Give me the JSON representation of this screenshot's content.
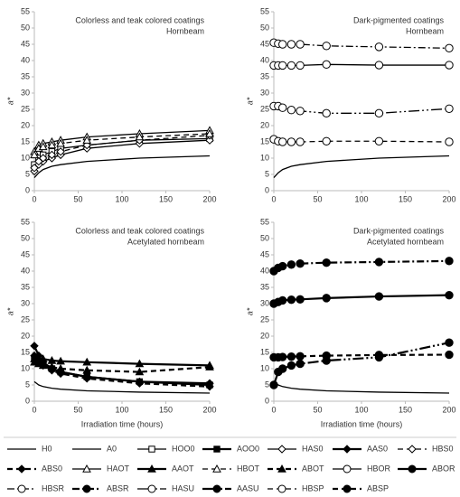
{
  "chart_data": [
    {
      "type": "line",
      "annotations": [
        "Colorless and teak colored coatings",
        "Hornbeam"
      ],
      "y_label": "a*",
      "x": [
        0,
        5,
        10,
        20,
        30,
        60,
        120,
        200
      ],
      "xlim": [
        0,
        200
      ],
      "xticks": [
        0,
        50,
        100,
        150,
        200
      ],
      "ylim": [
        0,
        55
      ],
      "yticks": [
        0,
        5,
        10,
        15,
        20,
        25,
        30,
        35,
        40,
        45,
        50,
        55
      ],
      "series": [
        {
          "name": "H0",
          "color": "#000000",
          "line": "solid",
          "marker": "none",
          "filled": false,
          "values": [
            4,
            5.5,
            6.5,
            7.5,
            8,
            9,
            10,
            10.7
          ]
        },
        {
          "name": "HOO0",
          "color": "#000000",
          "line": "solid",
          "marker": "square",
          "filled": false,
          "values": [
            8,
            10,
            11,
            12,
            13,
            14,
            15.5,
            16
          ]
        },
        {
          "name": "HAS0",
          "color": "#000000",
          "line": "solid",
          "marker": "diamond",
          "filled": false,
          "values": [
            6,
            8,
            9,
            10,
            11,
            13,
            14.5,
            15.5
          ]
        },
        {
          "name": "HBS0",
          "color": "#000000",
          "line": "dashed",
          "marker": "diamond",
          "filled": false,
          "values": [
            7,
            9,
            10,
            11,
            12,
            14,
            15.5,
            17
          ]
        },
        {
          "name": "HAOT",
          "color": "#000000",
          "line": "solid",
          "marker": "triangle",
          "filled": false,
          "values": [
            12,
            14,
            14.5,
            15,
            15.5,
            16.5,
            17.5,
            18.5
          ]
        },
        {
          "name": "HBOT",
          "color": "#000000",
          "line": "dashed",
          "marker": "triangle",
          "filled": false,
          "values": [
            11,
            13,
            13.5,
            14,
            14.5,
            15.5,
            16.5,
            17.5
          ]
        }
      ]
    },
    {
      "type": "line",
      "annotations": [
        "Dark-pigmented coatings",
        "Hornbeam"
      ],
      "y_label": "a*",
      "x": [
        0,
        5,
        10,
        20,
        30,
        60,
        120,
        200
      ],
      "xlim": [
        0,
        200
      ],
      "xticks": [
        0,
        50,
        100,
        150,
        200
      ],
      "ylim": [
        0,
        55
      ],
      "yticks": [
        0,
        5,
        10,
        15,
        20,
        25,
        30,
        35,
        40,
        45,
        50,
        55
      ],
      "series": [
        {
          "color": "#000000",
          "line": "solid",
          "marker": "none",
          "filled": false,
          "values": [
            4,
            5.5,
            6.5,
            7.5,
            8,
            9,
            10,
            10.7
          ]
        },
        {
          "name": "HBOR",
          "color": "#000000",
          "line": "solid",
          "marker": "circle",
          "filled": false,
          "values": [
            38.5,
            38.5,
            38.5,
            38.5,
            38.5,
            38.8,
            38.6,
            38.6
          ]
        },
        {
          "name": "HBSR",
          "color": "#000000",
          "line": "dashdot",
          "marker": "circle",
          "filled": false,
          "values": [
            45.5,
            45.2,
            45,
            45,
            45,
            44.5,
            44.2,
            43.8
          ]
        },
        {
          "name": "HASU",
          "color": "#000000",
          "line": "longdashdot",
          "marker": "circle",
          "filled": false,
          "values": [
            26,
            26,
            25.5,
            24.8,
            24.5,
            23.8,
            23.8,
            25.2
          ]
        },
        {
          "name": "HBSP",
          "color": "#000000",
          "line": "dashed",
          "marker": "circle",
          "filled": false,
          "values": [
            15.8,
            15.2,
            15,
            15,
            15,
            15.2,
            15.2,
            15
          ]
        }
      ]
    },
    {
      "type": "line",
      "annotations": [
        "Colorless and teak colored coatings",
        "Acetylated hornbeam"
      ],
      "y_label": "a*",
      "x_label": "Irradiation time (hours)",
      "x": [
        0,
        5,
        10,
        20,
        30,
        60,
        120,
        200
      ],
      "xlim": [
        0,
        200
      ],
      "xticks": [
        0,
        50,
        100,
        150,
        200
      ],
      "ylim": [
        0,
        55
      ],
      "yticks": [
        0,
        5,
        10,
        15,
        20,
        25,
        30,
        35,
        40,
        45,
        50,
        55
      ],
      "series": [
        {
          "name": "A0",
          "color": "#000000",
          "line": "solid",
          "marker": "none",
          "filled": false,
          "values": [
            6,
            5,
            4.5,
            4,
            3.7,
            3.2,
            2.8,
            2.5
          ]
        },
        {
          "name": "AOO0",
          "color": "#000000",
          "line": "solid",
          "marker": "square",
          "filled": true,
          "values": [
            13,
            12,
            11,
            10,
            9,
            7.5,
            6,
            5
          ]
        },
        {
          "name": "AAS0",
          "color": "#000000",
          "line": "solid",
          "marker": "diamond",
          "filled": true,
          "values": [
            17,
            14,
            12,
            10,
            9,
            7.5,
            6,
            5.5
          ]
        },
        {
          "name": "ABS0",
          "color": "#000000",
          "line": "dashed",
          "marker": "diamond",
          "filled": true,
          "values": [
            14,
            12,
            11,
            9.5,
            8.5,
            7,
            5.5,
            4.5
          ]
        },
        {
          "name": "AAOT",
          "color": "#000000",
          "line": "solid",
          "marker": "triangle",
          "filled": true,
          "values": [
            13,
            13,
            13,
            12.5,
            12.3,
            12,
            11.5,
            11
          ]
        },
        {
          "name": "ABOT",
          "color": "#000000",
          "line": "dashed",
          "marker": "triangle",
          "filled": true,
          "values": [
            12,
            11.5,
            11,
            10.5,
            10,
            9.5,
            9,
            10.5
          ]
        }
      ]
    },
    {
      "type": "line",
      "annotations": [
        "Dark-pigmented coatings",
        "Acetylated hornbeam"
      ],
      "y_label": "a*",
      "x_label": "Irradiation time (hours)",
      "x": [
        0,
        5,
        10,
        20,
        30,
        60,
        120,
        200
      ],
      "xlim": [
        0,
        200
      ],
      "xticks": [
        0,
        50,
        100,
        150,
        200
      ],
      "ylim": [
        0,
        55
      ],
      "yticks": [
        0,
        5,
        10,
        15,
        20,
        25,
        30,
        35,
        40,
        45,
        50,
        55
      ],
      "series": [
        {
          "color": "#000000",
          "line": "solid",
          "marker": "none",
          "filled": false,
          "values": [
            6,
            5,
            4.5,
            4,
            3.7,
            3.2,
            2.8,
            2.5
          ]
        },
        {
          "name": "ABOR",
          "color": "#000000",
          "line": "solid",
          "marker": "circle",
          "filled": true,
          "values": [
            30,
            30.5,
            31,
            31.2,
            31.3,
            31.7,
            32.2,
            32.6
          ]
        },
        {
          "name": "ABSR",
          "color": "#000000",
          "line": "dashdot",
          "marker": "circle",
          "filled": true,
          "values": [
            40,
            41,
            41.5,
            42,
            42.3,
            42.6,
            42.8,
            43.1
          ]
        },
        {
          "name": "AASU",
          "color": "#000000",
          "line": "longdashdot",
          "marker": "circle",
          "filled": true,
          "values": [
            5,
            9,
            10,
            11,
            11.5,
            12.5,
            13.5,
            18
          ]
        },
        {
          "name": "ABSP",
          "color": "#000000",
          "line": "dashed",
          "marker": "circle",
          "filled": true,
          "values": [
            13.5,
            13.5,
            13.6,
            13.7,
            13.8,
            14,
            14.2,
            14.3
          ]
        }
      ]
    }
  ]
}
